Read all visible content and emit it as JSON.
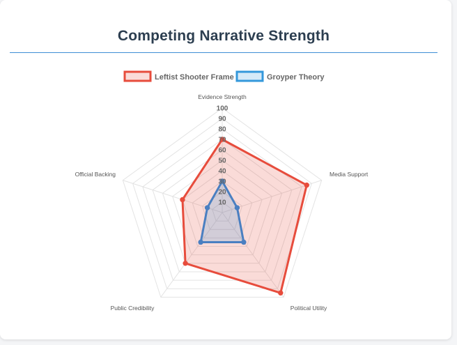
{
  "title": "Competing Narrative Strength",
  "chart_data": {
    "type": "radar",
    "axes": [
      "Evidence Strength",
      "Media Support",
      "Political Utility",
      "Public Credibility",
      "Official Backing"
    ],
    "r_range": [
      0,
      100
    ],
    "ticks": [
      "10",
      "20",
      "30",
      "40",
      "50",
      "60",
      "70",
      "80",
      "90",
      "100"
    ],
    "grid": true,
    "legend_position": "top",
    "series": [
      {
        "name": "Leftist Shooter Frame",
        "values": [
          70,
          85,
          95,
          60,
          40
        ],
        "color": "#e74c3c",
        "fill": "rgba(231,76,60,0.2)"
      },
      {
        "name": "Groyper Theory",
        "values": [
          30,
          15,
          35,
          35,
          15
        ],
        "color": "#4a7fc1",
        "fill": "rgba(52,152,219,0.2)"
      }
    ]
  }
}
